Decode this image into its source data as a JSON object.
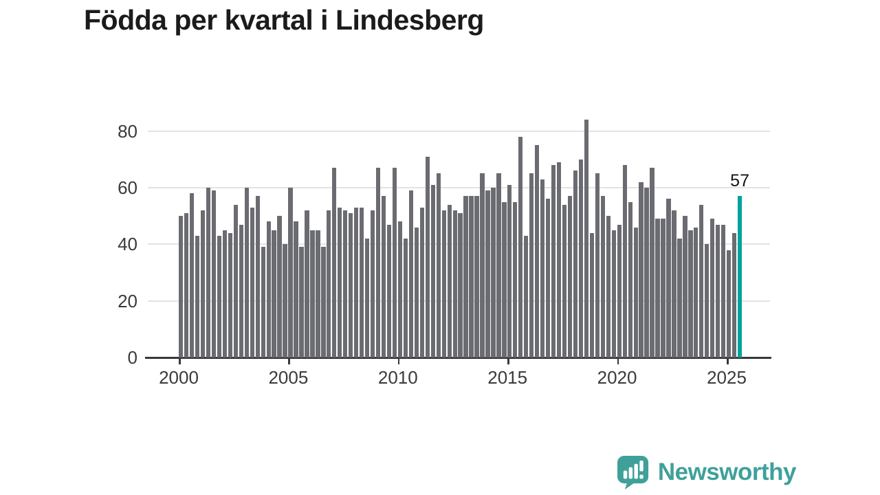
{
  "title": "Födda per kvartal i Lindesberg",
  "colors": {
    "bar": "#6b6b72",
    "highlight": "#00a39c",
    "grid": "#e3e3e3",
    "axis": "#38383c",
    "logo": "#3fa09a"
  },
  "y_axis": {
    "ticks": [
      0,
      20,
      40,
      60,
      80
    ]
  },
  "x_axis": {
    "ticks": [
      "2000",
      "2005",
      "2010",
      "2015",
      "2020",
      "2025"
    ]
  },
  "annotation": {
    "text": "57"
  },
  "logo": {
    "text": "Newsworthy"
  },
  "chart_data": {
    "type": "bar",
    "title": "Födda per kvartal i Lindesberg",
    "x_start_quarter": "2000 Q1",
    "x_end_quarter": "2025 Q3",
    "quarters_per_year": 4,
    "ylim": [
      0,
      88
    ],
    "grid": "horizontal",
    "series": [
      {
        "name": "Födda per kvartal",
        "values": [
          50,
          51,
          58,
          43,
          52,
          60,
          59,
          43,
          45,
          44,
          54,
          47,
          60,
          53,
          57,
          39,
          48,
          45,
          50,
          40,
          60,
          48,
          39,
          52,
          45,
          45,
          39,
          52,
          67,
          53,
          52,
          51,
          53,
          53,
          42,
          52,
          67,
          57,
          47,
          67,
          48,
          42,
          59,
          46,
          53,
          71,
          61,
          65,
          52,
          54,
          52,
          51,
          57,
          57,
          57,
          65,
          59,
          60,
          65,
          55,
          61,
          55,
          78,
          43,
          65,
          75,
          63,
          56,
          68,
          69,
          54,
          57,
          66,
          70,
          84,
          44,
          65,
          57,
          50,
          45,
          47,
          68,
          55,
          46,
          62,
          60,
          67,
          49,
          49,
          56,
          52,
          42,
          50,
          45,
          46,
          54,
          40,
          49,
          47,
          47,
          38,
          44,
          57
        ]
      }
    ],
    "highlight_index": 102,
    "highlight_value": 57
  }
}
